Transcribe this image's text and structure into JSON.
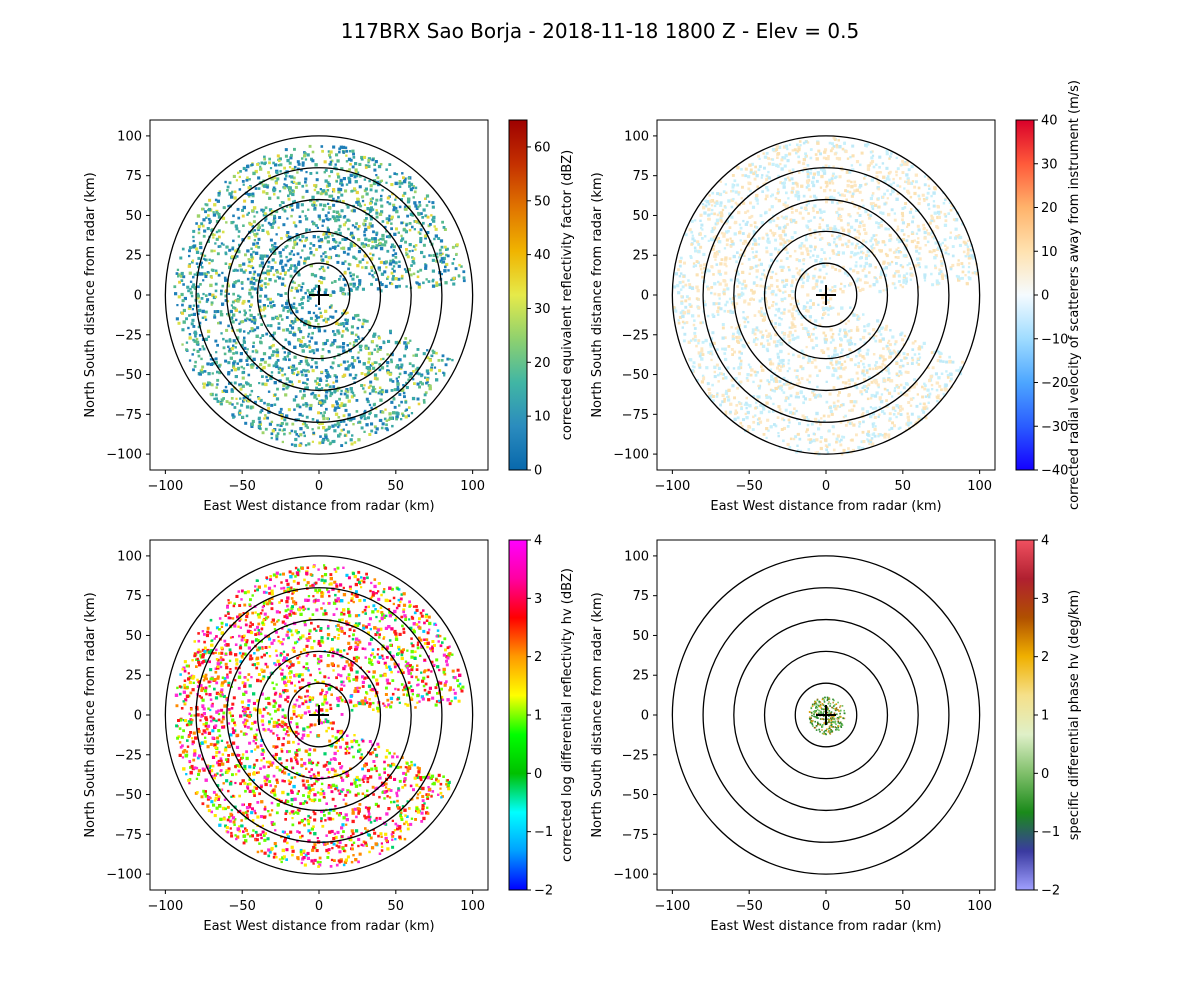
{
  "figure": {
    "title": "117BRX Sao Borja - 2018-11-18 1800 Z -  Elev = 0.5"
  },
  "colors": {
    "ring": "#000000",
    "axis": "#000000",
    "background": "#ffffff"
  },
  "chart_data": [
    {
      "type": "heatmap",
      "panel": "top-left",
      "field": "reflectivity",
      "xlabel": "East West distance from radar (km)",
      "ylabel": "North South distance from radar (km)",
      "xlim": [
        -110,
        110
      ],
      "ylim": [
        -110,
        110
      ],
      "xticks": [
        -100,
        -50,
        0,
        50,
        100
      ],
      "yticks": [
        -100,
        -75,
        -50,
        -25,
        0,
        25,
        50,
        75,
        100
      ],
      "range_rings_km": [
        20,
        40,
        60,
        80,
        100
      ],
      "colorbar": {
        "label": "corrected equivalent reflectivity factor (dBZ)",
        "min": 0,
        "max": 65,
        "ticks": [
          0,
          10,
          20,
          30,
          40,
          50,
          60
        ],
        "colors": [
          "#0868ac",
          "#2b8cbe",
          "#41b6a4",
          "#8fd16e",
          "#e6ea4a",
          "#f0b400",
          "#e07400",
          "#c43000",
          "#9e0000"
        ]
      },
      "echo": {
        "min_deg": 5,
        "max_deg": 335,
        "max_r_km": 95,
        "colors": [
          "#1f7fb8",
          "#3aa8a6",
          "#55b98f",
          "#9dd36a",
          "#d9e04a",
          "#e8d23a"
        ],
        "weights": [
          3,
          3,
          2,
          1,
          1,
          0.4
        ]
      }
    },
    {
      "type": "heatmap",
      "panel": "top-right",
      "field": "velocity",
      "xlabel": "East West distance from radar (km)",
      "ylabel": "North South distance from radar (km)",
      "xlim": [
        -110,
        110
      ],
      "ylim": [
        -110,
        110
      ],
      "xticks": [
        -100,
        -50,
        0,
        50,
        100
      ],
      "yticks": [
        -100,
        -75,
        -50,
        -25,
        0,
        25,
        50,
        75,
        100
      ],
      "range_rings_km": [
        20,
        40,
        60,
        80,
        100
      ],
      "colorbar": {
        "label": "corrected radial velocity of scatterers away from instrument (m/s)",
        "min": -40,
        "max": 40,
        "ticks": [
          -40,
          -30,
          -20,
          -10,
          0,
          10,
          20,
          30,
          40
        ],
        "colors": [
          "#1400ff",
          "#2a5cff",
          "#4da6ff",
          "#9fdcff",
          "#f5fbff",
          "#ffe2b0",
          "#ffb36b",
          "#ff5a3a",
          "#d9002a"
        ]
      },
      "echo": {
        "min_deg": 5,
        "max_deg": 335,
        "max_r_km": 100,
        "colors": [
          "#c8f0fb",
          "#bfeaf8",
          "#fde8c4",
          "#fbe2b4"
        ],
        "weights": [
          2,
          1,
          2,
          1
        ]
      }
    },
    {
      "type": "heatmap",
      "panel": "bottom-left",
      "field": "differential_reflectivity",
      "xlabel": "East West distance from radar (km)",
      "ylabel": "North South distance from radar (km)",
      "xlim": [
        -110,
        110
      ],
      "ylim": [
        -110,
        110
      ],
      "xticks": [
        -100,
        -50,
        0,
        50,
        100
      ],
      "yticks": [
        -100,
        -75,
        -50,
        -25,
        0,
        25,
        50,
        75,
        100
      ],
      "range_rings_km": [
        20,
        40,
        60,
        80,
        100
      ],
      "colorbar": {
        "label": "corrected log differential reflectivity hv (dBZ)",
        "min": -2,
        "max": 4,
        "ticks": [
          -2,
          -1,
          0,
          1,
          2,
          3,
          4
        ],
        "colors": [
          "#0000ff",
          "#00a0ff",
          "#00ffff",
          "#00c000",
          "#00ff00",
          "#ffff00",
          "#ff9a00",
          "#ff0000",
          "#ff00a0",
          "#ff00ff"
        ]
      },
      "echo": {
        "min_deg": 5,
        "max_deg": 335,
        "max_r_km": 95,
        "colors": [
          "#ff1a1a",
          "#ff8a00",
          "#ffe600",
          "#66ff00",
          "#00d26a",
          "#ff2bd6",
          "#ff0080",
          "#00c8ff"
        ],
        "weights": [
          3,
          2,
          2,
          2,
          1,
          2,
          1,
          0.5
        ]
      }
    },
    {
      "type": "heatmap",
      "panel": "bottom-right",
      "field": "specific_differential_phase",
      "xlabel": "East West distance from radar (km)",
      "ylabel": "North South distance from radar (km)",
      "xlim": [
        -110,
        110
      ],
      "ylim": [
        -110,
        110
      ],
      "xticks": [
        -100,
        -50,
        0,
        50,
        100
      ],
      "yticks": [
        -100,
        -75,
        -50,
        -25,
        0,
        25,
        50,
        75,
        100
      ],
      "range_rings_km": [
        20,
        40,
        60,
        80,
        100
      ],
      "colorbar": {
        "label": "specific differential phase hv (deg/km)",
        "min": -2,
        "max": 4,
        "ticks": [
          -2,
          -1,
          0,
          1,
          2,
          3,
          4
        ],
        "colors": [
          "#a0a0ff",
          "#3a3aa0",
          "#1a8a1a",
          "#7fbf6a",
          "#dff0c8",
          "#f5e08a",
          "#f0b000",
          "#b05000",
          "#b02030",
          "#f05060"
        ]
      },
      "echo": {
        "min_deg": 0,
        "max_deg": 360,
        "max_r_km": 12,
        "colors": [
          "#2e8b2e",
          "#6abf5a",
          "#c8a040",
          "#e0a000",
          "#8b5a00"
        ],
        "weights": [
          3,
          2,
          1,
          1,
          0.5
        ]
      }
    }
  ]
}
